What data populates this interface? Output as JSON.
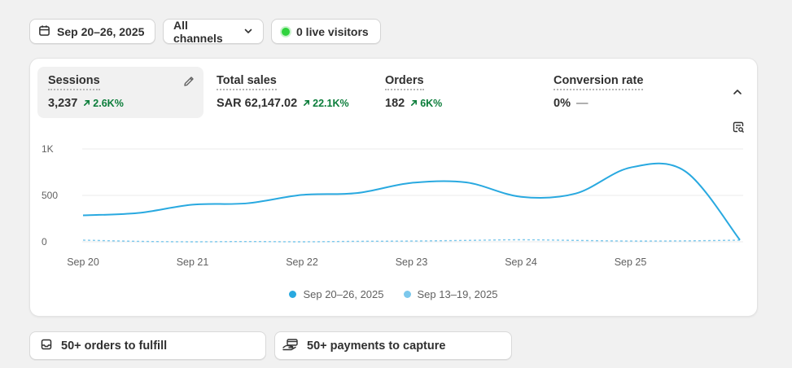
{
  "toolbar": {
    "date_range": "Sep 20–26, 2025",
    "channels": "All channels",
    "live_visitors": "0 live visitors"
  },
  "metrics": [
    {
      "label": "Sessions",
      "value": "3,237",
      "delta": "2.6K%"
    },
    {
      "label": "Total sales",
      "value": "SAR 62,147.02",
      "delta": "22.1K%"
    },
    {
      "label": "Orders",
      "value": "182",
      "delta": "6K%"
    },
    {
      "label": "Conversion rate",
      "value": "0%",
      "delta": "—"
    }
  ],
  "colors": {
    "current_series": "#29a9e0",
    "previous_series": "#7cc8ec",
    "positive": "#0b7d3a",
    "live_dot": "#2fd33d"
  },
  "chart_data": {
    "type": "line",
    "y_ticks": [
      "1K",
      "500",
      "0"
    ],
    "ylim": [
      0,
      1000
    ],
    "grid": true,
    "x_ticks": [
      "Sep 20",
      "Sep 21",
      "Sep 22",
      "Sep 23",
      "Sep 24",
      "Sep 25"
    ],
    "x": [
      0,
      0.5,
      1,
      1.5,
      2,
      2.5,
      3,
      3.5,
      4,
      4.5,
      5,
      5.5,
      6
    ],
    "series": [
      {
        "name": "Sep 20–26, 2025",
        "values": [
          285,
          310,
          400,
          415,
          505,
          525,
          635,
          640,
          485,
          520,
          800,
          760,
          20
        ]
      },
      {
        "name": "Sep 13–19, 2025",
        "values": [
          18,
          5,
          0,
          3,
          0,
          5,
          8,
          15,
          22,
          15,
          8,
          10,
          18
        ]
      }
    ],
    "legend": "bottom-center"
  },
  "tasks": {
    "fulfill": "50+ orders to fulfill",
    "capture": "50+ payments to capture"
  }
}
